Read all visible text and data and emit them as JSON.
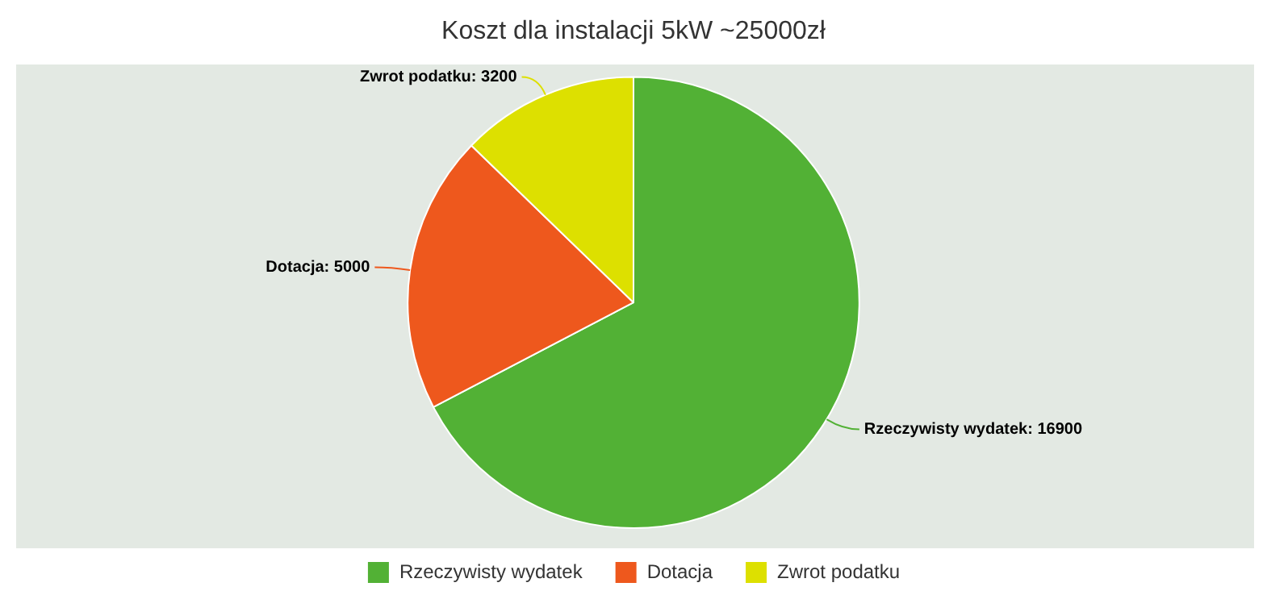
{
  "chart_data": {
    "type": "pie",
    "title": "Koszt dla instalacji 5kW ~25000zł",
    "categories": [
      "Rzeczywisty wydatek",
      "Dotacja",
      "Zwrot podatku"
    ],
    "values": [
      16900,
      5000,
      3200
    ],
    "value_labels": [
      "Rzeczywisty wydatek: 16900",
      "Dotacja: 5000",
      "Zwrot podatku: 3200"
    ],
    "colors": [
      "#52b135",
      "#ee581d",
      "#dde000"
    ],
    "legend": "bottom"
  }
}
